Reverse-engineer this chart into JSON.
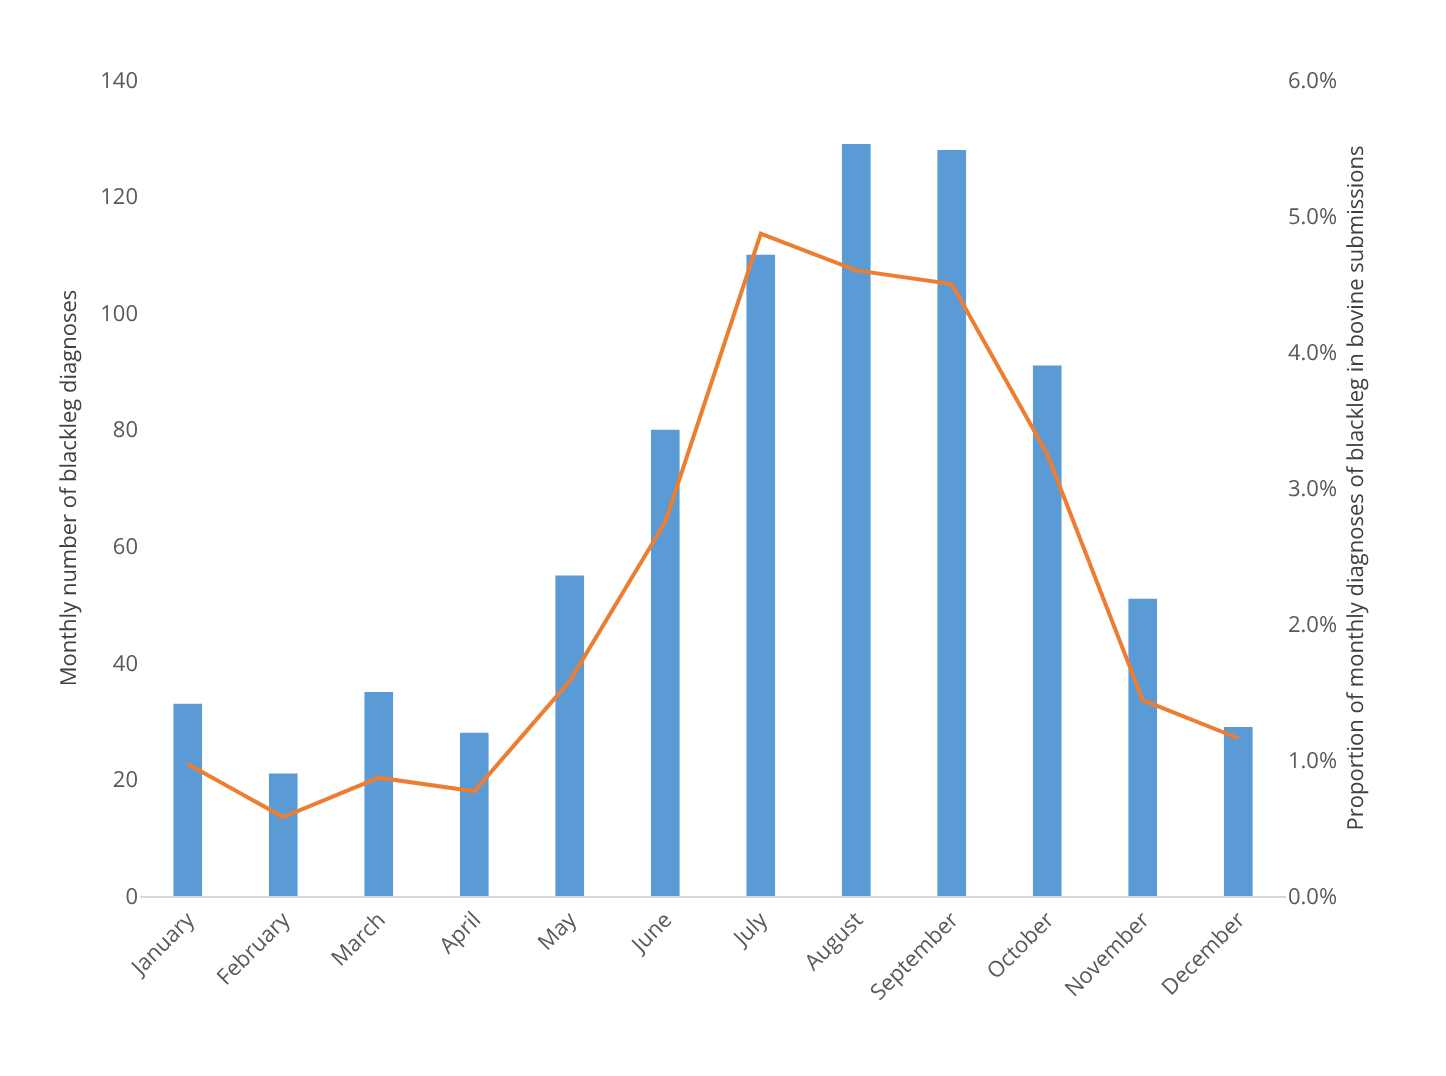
{
  "chart_data": {
    "type": "bar",
    "ylabel": "Monthly number of blackleg diagnoses",
    "y2label": "Proportion of monthly diagnoses of blackleg in bovine submissions",
    "categories": [
      "January",
      "February",
      "March",
      "April",
      "May",
      "June",
      "July",
      "August",
      "September",
      "October",
      "November",
      "December"
    ],
    "series": [
      {
        "color": "#5b9bd5",
        "values": [
          33,
          21,
          35,
          28,
          55,
          80,
          110,
          129,
          128,
          91,
          51,
          29
        ]
      },
      {
        "type": "line",
        "axis": "y2",
        "color": "#ed7d31",
        "values": [
          0.97,
          0.58,
          0.87,
          0.77,
          1.58,
          2.75,
          4.87,
          4.6,
          4.5,
          3.25,
          1.44,
          1.16
        ]
      }
    ],
    "ylim": [
      0,
      140
    ],
    "yticks": [
      0,
      20,
      40,
      60,
      80,
      100,
      120,
      140
    ],
    "y2lim": [
      0,
      6
    ],
    "y2ticks": [
      {
        "value": 0,
        "label": "0.0%"
      },
      {
        "value": 1,
        "label": "1.0%"
      },
      {
        "value": 2,
        "label": "2.0%"
      },
      {
        "value": 3,
        "label": "3.0%"
      },
      {
        "value": 4,
        "label": "4.0%"
      },
      {
        "value": 5,
        "label": "5.0%"
      },
      {
        "value": 6,
        "label": "6.0%"
      }
    ],
    "grid": false,
    "legend": false,
    "marker": "none"
  }
}
